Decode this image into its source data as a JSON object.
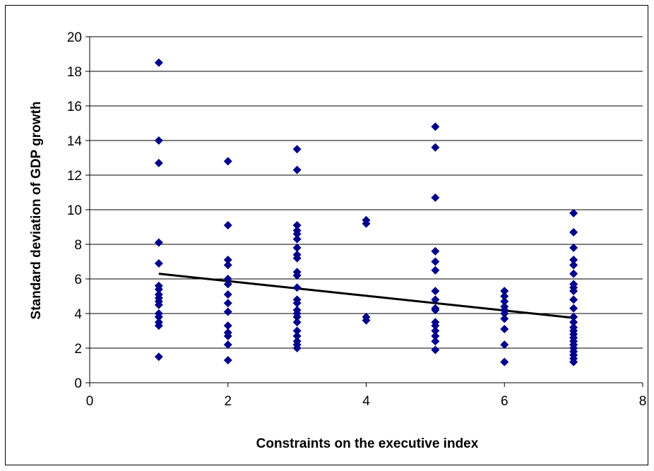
{
  "chart_data": {
    "type": "scatter",
    "title": "",
    "xlabel": "Constraints on the executive index",
    "ylabel": "Standard deviation of GDP growth",
    "xlim": [
      0,
      8
    ],
    "ylim": [
      0,
      20
    ],
    "x_ticks": [
      "0",
      "2",
      "4",
      "6",
      "8"
    ],
    "y_ticks": [
      "0",
      "2",
      "4",
      "6",
      "8",
      "10",
      "12",
      "14",
      "16",
      "18",
      "20"
    ],
    "grid": "horizontal",
    "legend": "none",
    "colors": {
      "marker": "#00008B",
      "trendline": "#000000",
      "grid": "#000000"
    },
    "points": [
      {
        "x": 1,
        "y": 18.5
      },
      {
        "x": 1,
        "y": 14.0
      },
      {
        "x": 1,
        "y": 12.7
      },
      {
        "x": 1,
        "y": 8.1
      },
      {
        "x": 1,
        "y": 6.9
      },
      {
        "x": 1,
        "y": 5.6
      },
      {
        "x": 1,
        "y": 5.4
      },
      {
        "x": 1,
        "y": 5.1
      },
      {
        "x": 1,
        "y": 4.9
      },
      {
        "x": 1,
        "y": 4.7
      },
      {
        "x": 1,
        "y": 4.5
      },
      {
        "x": 1,
        "y": 4.0
      },
      {
        "x": 1,
        "y": 3.8
      },
      {
        "x": 1,
        "y": 3.5
      },
      {
        "x": 1,
        "y": 3.3
      },
      {
        "x": 1,
        "y": 1.5
      },
      {
        "x": 2,
        "y": 12.8
      },
      {
        "x": 2,
        "y": 9.1
      },
      {
        "x": 2,
        "y": 7.1
      },
      {
        "x": 2,
        "y": 6.8
      },
      {
        "x": 2,
        "y": 6.0
      },
      {
        "x": 2,
        "y": 5.7
      },
      {
        "x": 2,
        "y": 5.1
      },
      {
        "x": 2,
        "y": 4.6
      },
      {
        "x": 2,
        "y": 4.1
      },
      {
        "x": 2,
        "y": 3.3
      },
      {
        "x": 2,
        "y": 2.9
      },
      {
        "x": 2,
        "y": 2.7
      },
      {
        "x": 2,
        "y": 2.2
      },
      {
        "x": 2,
        "y": 1.3
      },
      {
        "x": 3,
        "y": 13.5
      },
      {
        "x": 3,
        "y": 12.3
      },
      {
        "x": 3,
        "y": 9.1
      },
      {
        "x": 3,
        "y": 8.8
      },
      {
        "x": 3,
        "y": 8.6
      },
      {
        "x": 3,
        "y": 8.3
      },
      {
        "x": 3,
        "y": 7.8
      },
      {
        "x": 3,
        "y": 7.4
      },
      {
        "x": 3,
        "y": 7.2
      },
      {
        "x": 3,
        "y": 6.4
      },
      {
        "x": 3,
        "y": 6.2
      },
      {
        "x": 3,
        "y": 5.5
      },
      {
        "x": 3,
        "y": 4.8
      },
      {
        "x": 3,
        "y": 4.6
      },
      {
        "x": 3,
        "y": 4.2
      },
      {
        "x": 3,
        "y": 4.0
      },
      {
        "x": 3,
        "y": 3.8
      },
      {
        "x": 3,
        "y": 3.5
      },
      {
        "x": 3,
        "y": 3.0
      },
      {
        "x": 3,
        "y": 2.7
      },
      {
        "x": 3,
        "y": 2.4
      },
      {
        "x": 3,
        "y": 2.2
      },
      {
        "x": 3,
        "y": 2.0
      },
      {
        "x": 4,
        "y": 9.4
      },
      {
        "x": 4,
        "y": 9.2
      },
      {
        "x": 4,
        "y": 3.8
      },
      {
        "x": 4,
        "y": 3.6
      },
      {
        "x": 5,
        "y": 14.8
      },
      {
        "x": 5,
        "y": 13.6
      },
      {
        "x": 5,
        "y": 10.7
      },
      {
        "x": 5,
        "y": 7.6
      },
      {
        "x": 5,
        "y": 7.0
      },
      {
        "x": 5,
        "y": 6.5
      },
      {
        "x": 5,
        "y": 5.3
      },
      {
        "x": 5,
        "y": 4.8
      },
      {
        "x": 5,
        "y": 4.3
      },
      {
        "x": 5,
        "y": 4.2
      },
      {
        "x": 5,
        "y": 3.5
      },
      {
        "x": 5,
        "y": 3.3
      },
      {
        "x": 5,
        "y": 3.0
      },
      {
        "x": 5,
        "y": 2.7
      },
      {
        "x": 5,
        "y": 2.4
      },
      {
        "x": 5,
        "y": 1.9
      },
      {
        "x": 6,
        "y": 5.3
      },
      {
        "x": 6,
        "y": 5.0
      },
      {
        "x": 6,
        "y": 4.7
      },
      {
        "x": 6,
        "y": 4.4
      },
      {
        "x": 6,
        "y": 4.2
      },
      {
        "x": 6,
        "y": 4.0
      },
      {
        "x": 6,
        "y": 3.7
      },
      {
        "x": 6,
        "y": 3.1
      },
      {
        "x": 6,
        "y": 2.2
      },
      {
        "x": 6,
        "y": 1.2
      },
      {
        "x": 7,
        "y": 9.8
      },
      {
        "x": 7,
        "y": 8.7
      },
      {
        "x": 7,
        "y": 7.8
      },
      {
        "x": 7,
        "y": 7.1
      },
      {
        "x": 7,
        "y": 6.8
      },
      {
        "x": 7,
        "y": 6.3
      },
      {
        "x": 7,
        "y": 5.7
      },
      {
        "x": 7,
        "y": 5.5
      },
      {
        "x": 7,
        "y": 5.3
      },
      {
        "x": 7,
        "y": 4.8
      },
      {
        "x": 7,
        "y": 4.3
      },
      {
        "x": 7,
        "y": 3.8
      },
      {
        "x": 7,
        "y": 3.5
      },
      {
        "x": 7,
        "y": 3.2
      },
      {
        "x": 7,
        "y": 3.0
      },
      {
        "x": 7,
        "y": 2.8
      },
      {
        "x": 7,
        "y": 2.6
      },
      {
        "x": 7,
        "y": 2.4
      },
      {
        "x": 7,
        "y": 2.2
      },
      {
        "x": 7,
        "y": 2.0
      },
      {
        "x": 7,
        "y": 1.8
      },
      {
        "x": 7,
        "y": 1.6
      },
      {
        "x": 7,
        "y": 1.4
      },
      {
        "x": 7,
        "y": 1.2
      }
    ],
    "trendline": {
      "x": [
        1,
        7
      ],
      "y": [
        6.3,
        3.75
      ]
    }
  }
}
